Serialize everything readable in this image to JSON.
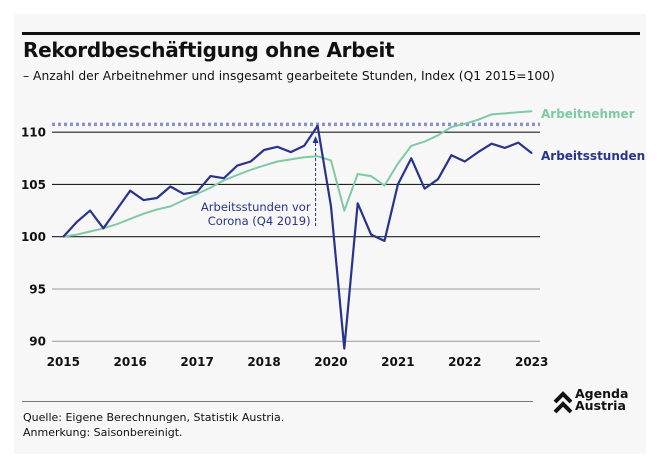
{
  "header": {
    "title": "Rekordbeschäftigung ohne Arbeit",
    "subtitle": "– Anzahl der Arbeitnehmer und insgesamt gearbeitete Stunden, Index (Q1 2015=100)"
  },
  "footer": {
    "source": "Quelle: Eigene Berechnungen, Statistik Austria.",
    "note": "Anmerkung: Saisonbereinigt.",
    "logo_text": "Agenda Austria"
  },
  "chart_data": {
    "type": "line",
    "x": [
      "2015Q1",
      "2015Q2",
      "2015Q3",
      "2015Q4",
      "2016Q1",
      "2016Q2",
      "2016Q3",
      "2016Q4",
      "2017Q1",
      "2017Q2",
      "2017Q3",
      "2017Q4",
      "2018Q1",
      "2018Q2",
      "2018Q3",
      "2018Q4",
      "2019Q1",
      "2019Q2",
      "2019Q3",
      "2019Q4",
      "2020Q1",
      "2020Q2",
      "2020Q3",
      "2020Q4",
      "2021Q1",
      "2021Q2",
      "2021Q3",
      "2021Q4",
      "2022Q1",
      "2022Q2",
      "2022Q3",
      "2022Q4",
      "2023Q1",
      "2023Q2",
      "2023Q3",
      "2023Q4"
    ],
    "x_tick_labels": [
      "2015",
      "2016",
      "2017",
      "2018",
      "2020",
      "2021",
      "2022",
      "2023"
    ],
    "y_ticks": [
      90,
      95,
      100,
      105,
      110
    ],
    "ylim": [
      89,
      113
    ],
    "grid": true,
    "series": [
      {
        "name": "Arbeitnehmer",
        "color": "#7fcaa3",
        "values": [
          100,
          100.2,
          100.5,
          100.8,
          101.2,
          101.7,
          102.2,
          102.6,
          102.9,
          103.5,
          104.1,
          104.7,
          105.4,
          105.9,
          106.4,
          106.8,
          107.2,
          107.4,
          107.6,
          107.7,
          107.3,
          102.5,
          106.0,
          105.8,
          104.9,
          107.0,
          108.7,
          109.1,
          109.7,
          110.5,
          110.8,
          111.2,
          111.7,
          111.8,
          111.9,
          112.0
        ]
      },
      {
        "name": "Arbeitsstunden",
        "color": "#27348b",
        "values": [
          100,
          101.4,
          102.5,
          100.8,
          102.6,
          104.4,
          103.5,
          103.7,
          104.8,
          104.1,
          104.3,
          105.8,
          105.6,
          106.8,
          107.2,
          108.3,
          108.6,
          108.1,
          108.7,
          110.6,
          102.9,
          89.3,
          103.2,
          100.2,
          99.6,
          105.0,
          107.5,
          104.6,
          105.5,
          107.8,
          107.2,
          108.1,
          108.9,
          108.5,
          109.0,
          108.0
        ]
      }
    ],
    "reference_line": {
      "value": 110.6,
      "color": "#8c93cc",
      "style": "dotted"
    },
    "annotation": {
      "text_line1": "Arbeitsstunden vor",
      "text_line2": "Corona (Q4 2019)",
      "at": "2019Q4"
    }
  }
}
